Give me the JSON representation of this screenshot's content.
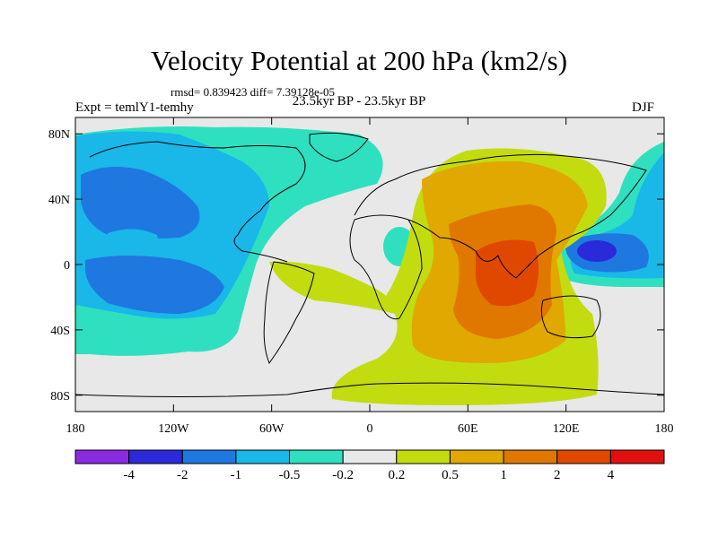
{
  "title": "Velocity Potential at 200 hPa (km2/s)",
  "stats": "rmsd= 0.839423 diff= 7.39128e-05",
  "expt": "Expt = temlY1-temhy",
  "period": "23.5kyr BP - 23.5kyr BP",
  "season": "DJF",
  "lat_ticks": [
    "80N",
    "40N",
    "0",
    "40S",
    "80S"
  ],
  "lon_ticks": [
    "180",
    "120W",
    "60W",
    "0",
    "60E",
    "120E",
    "180"
  ],
  "colorbar": {
    "levels": [
      "-4",
      "-2",
      "-1",
      "-0.5",
      "-0.2",
      "0.2",
      "0.5",
      "1",
      "2",
      "4"
    ],
    "colors": [
      "#8a2be2",
      "#2a2ad8",
      "#1e78e0",
      "#19b8e8",
      "#2ee0c0",
      "#e8e8e8",
      "#c2dc10",
      "#e0a800",
      "#e07800",
      "#e04800",
      "#e01010"
    ]
  }
}
